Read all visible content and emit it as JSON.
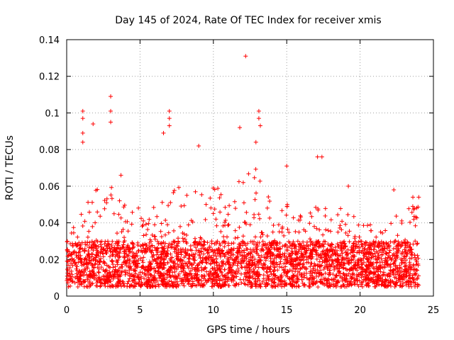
{
  "chart_data": {
    "type": "scatter",
    "title": "Day 145 of 2024, Rate Of TEC Index for receiver xmis",
    "xlabel": "GPS time / hours",
    "ylabel": "ROTI / TECUs",
    "xlim": [
      0,
      25
    ],
    "ylim": [
      0,
      0.14
    ],
    "xticks": [
      0,
      5,
      10,
      15,
      20,
      25
    ],
    "xtick_labels": [
      "0",
      "5",
      "10",
      "15",
      "20",
      "25"
    ],
    "yticks": [
      0,
      0.02,
      0.04,
      0.06,
      0.08,
      0.1,
      0.12,
      0.14
    ],
    "ytick_labels": [
      "0",
      "0.02",
      "0.04",
      "0.06",
      "0.08",
      "0.1",
      "0.12",
      "0.14"
    ],
    "grid": true,
    "marker": "+",
    "series_color": "#ff0000",
    "time_range_hours": [
      0,
      24
    ],
    "bulk_band": [
      0.005,
      0.03
    ],
    "envelope": [
      {
        "x": 0,
        "y": 0.03
      },
      {
        "x": 1,
        "y": 0.05
      },
      {
        "x": 2,
        "y": 0.06
      },
      {
        "x": 3,
        "y": 0.06
      },
      {
        "x": 4,
        "y": 0.05
      },
      {
        "x": 5,
        "y": 0.05
      },
      {
        "x": 6,
        "y": 0.05
      },
      {
        "x": 7,
        "y": 0.06
      },
      {
        "x": 8,
        "y": 0.06
      },
      {
        "x": 9,
        "y": 0.06
      },
      {
        "x": 10,
        "y": 0.06
      },
      {
        "x": 11,
        "y": 0.06
      },
      {
        "x": 12,
        "y": 0.07
      },
      {
        "x": 13,
        "y": 0.07
      },
      {
        "x": 14,
        "y": 0.05
      },
      {
        "x": 15,
        "y": 0.05
      },
      {
        "x": 16,
        "y": 0.05
      },
      {
        "x": 17,
        "y": 0.05
      },
      {
        "x": 18,
        "y": 0.05
      },
      {
        "x": 19,
        "y": 0.05
      },
      {
        "x": 20,
        "y": 0.04
      },
      {
        "x": 21,
        "y": 0.04
      },
      {
        "x": 22,
        "y": 0.04
      },
      {
        "x": 23,
        "y": 0.05
      },
      {
        "x": 24,
        "y": 0.05
      }
    ],
    "notable_points": [
      {
        "x": 12.2,
        "y": 0.131
      },
      {
        "x": 3.0,
        "y": 0.109
      },
      {
        "x": 3.0,
        "y": 0.101
      },
      {
        "x": 3.0,
        "y": 0.095
      },
      {
        "x": 1.1,
        "y": 0.101
      },
      {
        "x": 1.1,
        "y": 0.097
      },
      {
        "x": 1.1,
        "y": 0.089
      },
      {
        "x": 1.1,
        "y": 0.084
      },
      {
        "x": 1.8,
        "y": 0.094
      },
      {
        "x": 3.7,
        "y": 0.066
      },
      {
        "x": 7.0,
        "y": 0.101
      },
      {
        "x": 7.0,
        "y": 0.097
      },
      {
        "x": 7.0,
        "y": 0.093
      },
      {
        "x": 6.6,
        "y": 0.089
      },
      {
        "x": 9.0,
        "y": 0.082
      },
      {
        "x": 11.8,
        "y": 0.092
      },
      {
        "x": 13.1,
        "y": 0.101
      },
      {
        "x": 13.1,
        "y": 0.097
      },
      {
        "x": 13.2,
        "y": 0.093
      },
      {
        "x": 12.9,
        "y": 0.084
      },
      {
        "x": 17.1,
        "y": 0.076
      },
      {
        "x": 17.4,
        "y": 0.076
      },
      {
        "x": 15.0,
        "y": 0.071
      },
      {
        "x": 19.2,
        "y": 0.06
      },
      {
        "x": 22.3,
        "y": 0.058
      },
      {
        "x": 23.6,
        "y": 0.054
      },
      {
        "x": 24.0,
        "y": 0.054
      }
    ]
  }
}
